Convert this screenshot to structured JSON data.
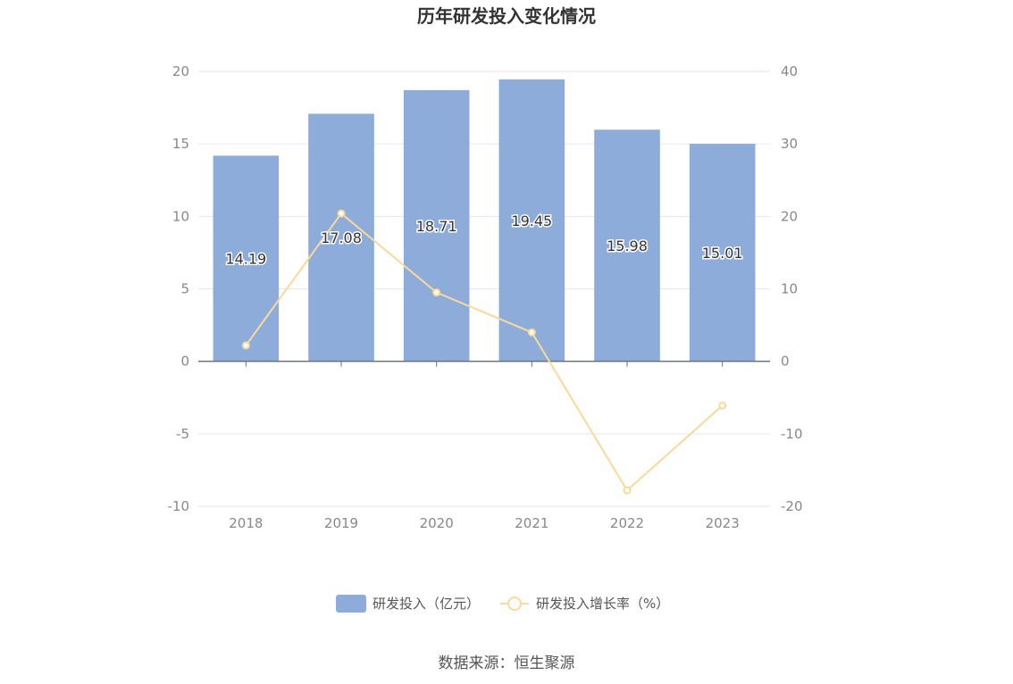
{
  "chart_data": {
    "type": "bar",
    "title": "历年研发投入变化情况",
    "categories": [
      "2018",
      "2019",
      "2020",
      "2021",
      "2022",
      "2023"
    ],
    "series": [
      {
        "name": "研发投入（亿元）",
        "type": "bar",
        "axis": "left",
        "color": "#8dacd9",
        "values": [
          14.19,
          17.08,
          18.71,
          19.45,
          15.98,
          15.01
        ],
        "value_labels": [
          "14.19",
          "17.08",
          "18.71",
          "19.45",
          "15.98",
          "15.01"
        ]
      },
      {
        "name": "研发投入增长率（%）",
        "type": "line",
        "axis": "right",
        "color": "#fbd89b",
        "values": [
          2.2,
          20.4,
          9.5,
          4.0,
          -17.8,
          -6.1
        ]
      }
    ],
    "y_left": {
      "min": -10,
      "max": 20,
      "ticks": [
        "20",
        "15",
        "10",
        "5",
        "0",
        "-5",
        "-10"
      ]
    },
    "y_right": {
      "min": -20,
      "max": 40,
      "ticks": [
        "40",
        "30",
        "20",
        "10",
        "0",
        "-10",
        "-20"
      ]
    },
    "grid": true,
    "legend_position": "bottom-center"
  },
  "source_text": "数据来源：恒生聚源"
}
